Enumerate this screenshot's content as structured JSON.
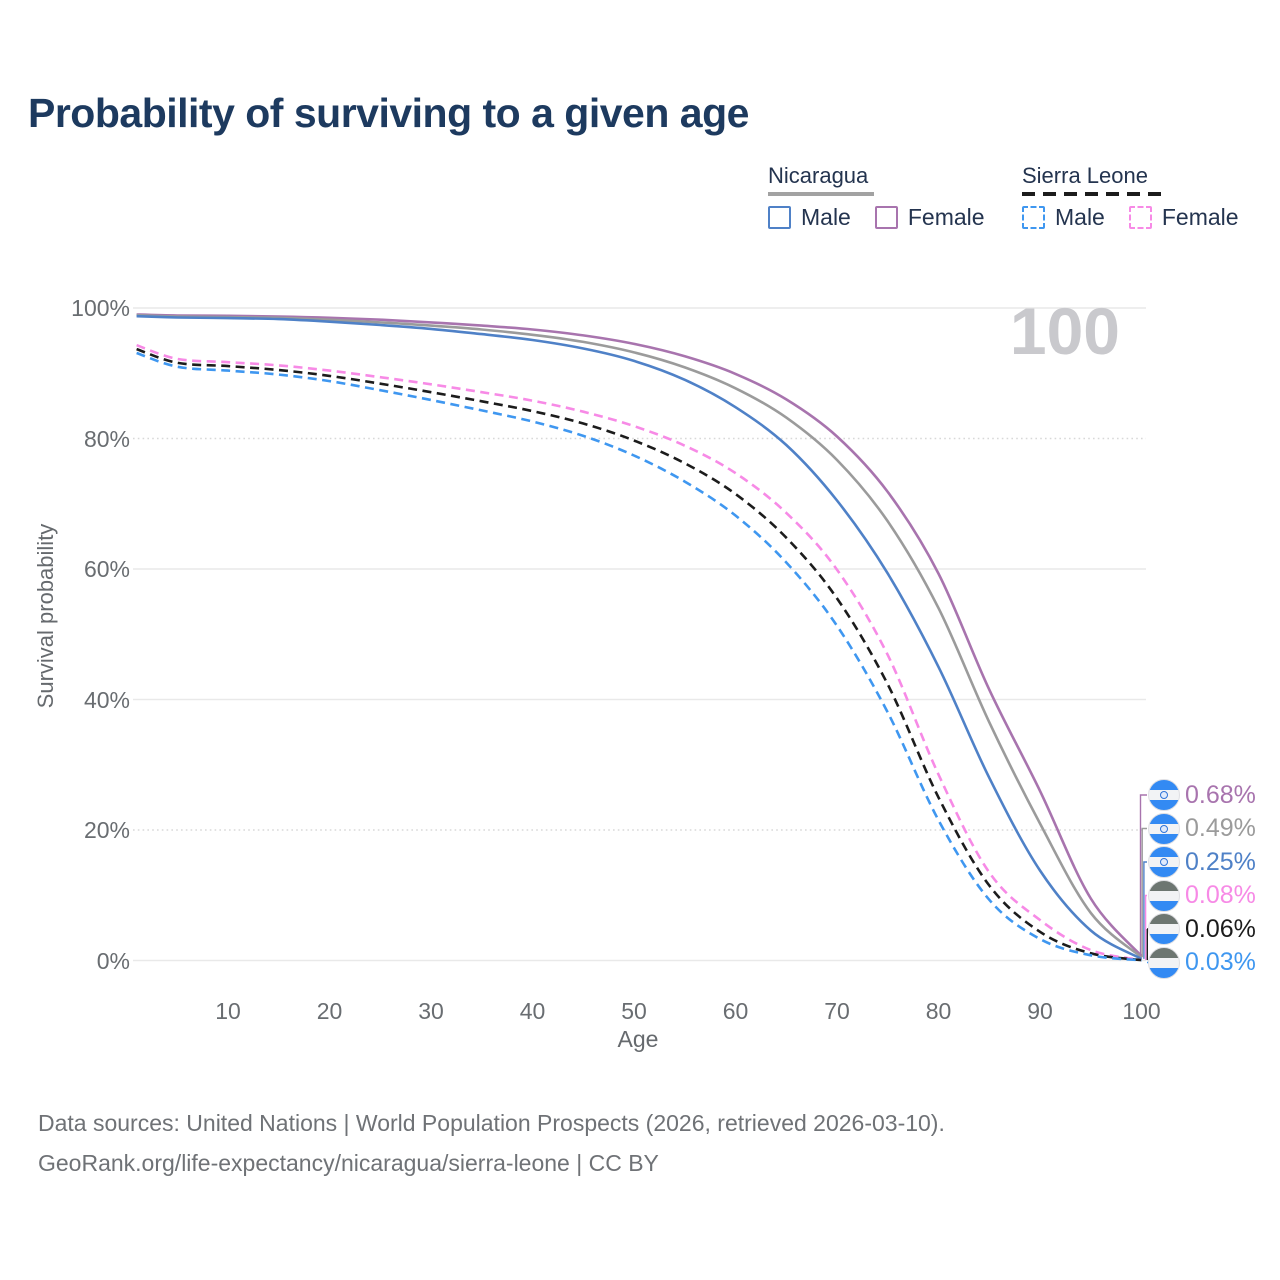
{
  "title": "Probability of surviving to a given age",
  "hover_age_display": "100",
  "legend": {
    "groups": [
      {
        "name": "Nicaragua",
        "line_style": "solid",
        "underline_color": "#a2a2a2",
        "items": [
          {
            "label": "Male",
            "color": "#4f81c7",
            "dashed": false
          },
          {
            "label": "Female",
            "color": "#a874ae",
            "dashed": false
          }
        ]
      },
      {
        "name": "Sierra Leone",
        "line_style": "dashed",
        "underline_color": "#1c1c1c",
        "items": [
          {
            "label": "Male",
            "color": "#3f97f0",
            "dashed": true
          },
          {
            "label": "Female",
            "color": "#f78ae6",
            "dashed": true
          }
        ]
      }
    ]
  },
  "chart_data": {
    "type": "line",
    "title": "Probability of surviving to a given age",
    "xlabel": "Age",
    "ylabel": "Survival probability",
    "xlim": [
      1,
      100
    ],
    "ylim": [
      0,
      100
    ],
    "grid": "horizontal-only",
    "legend_position": "top-right",
    "xticks": [
      "10",
      "20",
      "30",
      "40",
      "50",
      "60",
      "70",
      "80",
      "90",
      "100"
    ],
    "xtick_values": [
      10,
      20,
      30,
      40,
      50,
      60,
      70,
      80,
      90,
      100
    ],
    "yticks": [
      "100%",
      "80%",
      "60%",
      "40%",
      "20%",
      "0%"
    ],
    "ytick_values": [
      100,
      80,
      60,
      40,
      20,
      0
    ],
    "dotted_gridline_values": [
      80,
      20
    ],
    "ages": [
      1,
      5,
      10,
      15,
      20,
      25,
      30,
      35,
      40,
      45,
      50,
      55,
      60,
      65,
      70,
      75,
      80,
      85,
      90,
      95,
      100
    ],
    "series": [
      {
        "name": "Nicaragua Female",
        "country": "Nicaragua",
        "sex": "Female",
        "color": "#a874ae",
        "dashed": false,
        "end_label": "0.68%",
        "flag": "nicaragua",
        "values": [
          99.0,
          98.85,
          98.8,
          98.7,
          98.5,
          98.2,
          97.8,
          97.3,
          96.7,
          95.8,
          94.5,
          92.6,
          89.9,
          86.0,
          80.3,
          71.8,
          59.3,
          41.5,
          26.0,
          9.5,
          0.68
        ]
      },
      {
        "name": "Nicaragua Both sexes",
        "country": "Nicaragua",
        "sex": "Both",
        "color": "#9b9b9b",
        "dashed": false,
        "end_label": "0.49%",
        "flag": "nicaragua",
        "values": [
          98.9,
          98.7,
          98.6,
          98.5,
          98.2,
          97.8,
          97.3,
          96.7,
          95.9,
          94.8,
          93.2,
          90.9,
          87.7,
          83.2,
          76.7,
          67.3,
          54.0,
          36.5,
          21.0,
          7.3,
          0.49
        ]
      },
      {
        "name": "Nicaragua Male",
        "country": "Nicaragua",
        "sex": "Male",
        "color": "#4f81c7",
        "dashed": false,
        "end_label": "0.25%",
        "flag": "nicaragua",
        "values": [
          98.75,
          98.55,
          98.45,
          98.3,
          97.9,
          97.4,
          96.8,
          96.0,
          95.1,
          93.8,
          91.9,
          89.0,
          84.8,
          79.0,
          70.5,
          59.3,
          45.0,
          28.0,
          13.8,
          4.6,
          0.25
        ]
      },
      {
        "name": "Sierra Leone Female",
        "country": "Sierra Leone",
        "sex": "Female",
        "color": "#f78ae6",
        "dashed": true,
        "end_label": "0.08%",
        "flag": "sierra-leone",
        "values": [
          94.3,
          92.2,
          91.7,
          91.2,
          90.4,
          89.4,
          88.3,
          87.1,
          85.8,
          84.1,
          81.9,
          78.9,
          74.7,
          68.6,
          59.9,
          46.8,
          28.5,
          13.5,
          6.2,
          1.6,
          0.08
        ]
      },
      {
        "name": "Sierra Leone Both sexes",
        "country": "Sierra Leone",
        "sex": "Both",
        "color": "#1c1c1c",
        "dashed": true,
        "end_label": "0.06%",
        "flag": "sierra-leone",
        "values": [
          93.7,
          91.6,
          91.1,
          90.5,
          89.6,
          88.4,
          87.1,
          85.7,
          84.2,
          82.3,
          79.7,
          76.2,
          71.5,
          64.8,
          55.5,
          42.3,
          25.0,
          11.5,
          4.4,
          1.1,
          0.06
        ]
      },
      {
        "name": "Sierra Leone Male",
        "country": "Sierra Leone",
        "sex": "Male",
        "color": "#3f97f0",
        "dashed": true,
        "end_label": "0.03%",
        "flag": "sierra-leone",
        "values": [
          93.1,
          91.0,
          90.4,
          89.8,
          88.8,
          87.4,
          85.9,
          84.3,
          82.6,
          80.4,
          77.4,
          73.4,
          68.2,
          61.0,
          51.3,
          38.0,
          21.5,
          9.3,
          3.3,
          0.8,
          0.03
        ]
      }
    ],
    "flag_colors": {
      "nicaragua": [
        "#338af3",
        "#f2f3f5",
        "#338af3"
      ],
      "sierra-leone": [
        "#6d7671",
        "#f2f3f5",
        "#338af3"
      ]
    }
  },
  "footer": {
    "line1": "Data sources: United Nations | World Population Prospects (2026, retrieved 2026-03-10).",
    "line2": "GeoRank.org/life-expectancy/nicaragua/sierra-leone | CC BY"
  }
}
